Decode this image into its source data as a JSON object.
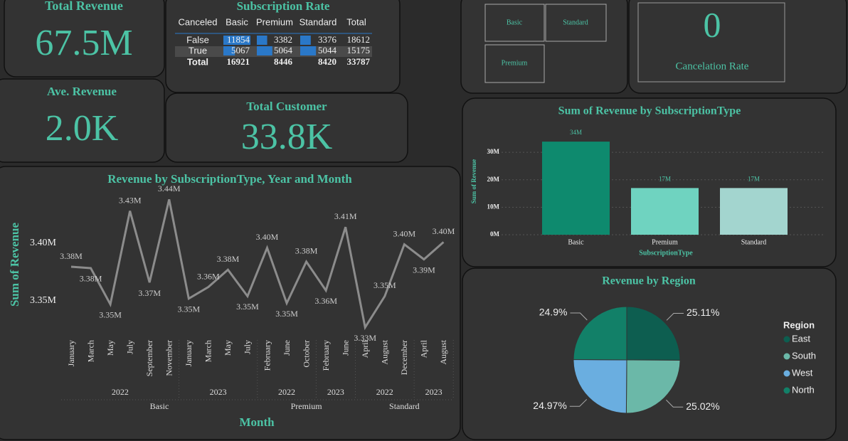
{
  "cards": {
    "total_revenue": {
      "title": "Total Revenue",
      "value": "67.5M"
    },
    "ave_revenue": {
      "title": "Ave. Revenue",
      "value": "2.0K"
    },
    "total_customer": {
      "title": "Total Customer",
      "value": "33.8K"
    },
    "cancelation_rate": {
      "title": "Cancelation Rate",
      "value": "0"
    }
  },
  "table": {
    "title": "Subscription Rate",
    "columns": [
      "Canceled",
      "Basic",
      "Premium",
      "Standard",
      "Total"
    ],
    "rows": [
      [
        "False",
        11854,
        3382,
        3376,
        18612
      ],
      [
        "True",
        5067,
        5064,
        5044,
        15175
      ],
      [
        "Total",
        16921,
        8446,
        8420,
        33787
      ]
    ],
    "bar_color": "#2a78c8"
  },
  "slicer": {
    "items": [
      "Basic",
      "Standard",
      "Premium"
    ]
  },
  "chart_data": [
    {
      "type": "line",
      "title": "Revenue by SubscriptionType, Year and Month",
      "y_label": "Sum of Revenue",
      "x_label": "Month",
      "color": "#8c8c8c",
      "ylim": [
        3320000,
        3445000
      ],
      "yticks": [
        {
          "value": 3350000,
          "label": "3.35M"
        },
        {
          "value": 3400000,
          "label": "3.40M"
        }
      ],
      "groups": [
        {
          "name": "Basic",
          "years": [
            {
              "year": "2022",
              "months": [
                "January",
                "March",
                "May",
                "July",
                "September",
                "November"
              ],
              "values": [
                3379600,
                3378400,
                3347000,
                3428000,
                3366000,
                3438000
              ],
              "value_labels": [
                "3.38M",
                "3.38M",
                "3.35M",
                "3.43M",
                "3.37M",
                "3.44M"
              ]
            },
            {
              "year": "2023",
              "months": [
                "January",
                "March",
                "May",
                "July"
              ],
              "values": [
                3352000,
                3362000,
                3377000,
                3354000
              ],
              "value_labels": [
                "3.35M",
                "3.36M",
                "3.38M",
                "3.35M"
              ]
            }
          ]
        },
        {
          "name": "Premium",
          "years": [
            {
              "year": "2022",
              "months": [
                "February",
                "June",
                "October"
              ],
              "values": [
                3396000,
                3348000,
                3384000
              ],
              "value_labels": [
                "3.40M",
                "3.35M",
                "3.38M"
              ]
            },
            {
              "year": "2023",
              "months": [
                "February",
                "June"
              ],
              "values": [
                3359000,
                3414000
              ],
              "value_labels": [
                "3.36M",
                "3.41M"
              ]
            }
          ]
        },
        {
          "name": "Standard",
          "years": [
            {
              "year": "2022",
              "months": [
                "April",
                "August",
                "December"
              ],
              "values": [
                3327000,
                3354000,
                3399000
              ],
              "value_labels": [
                "3.33M",
                "3.35M",
                "3.40M"
              ]
            },
            {
              "year": "2023",
              "months": [
                "April",
                "August"
              ],
              "values": [
                3386000,
                3401000
              ],
              "value_labels": [
                "3.39M",
                "3.40M"
              ]
            }
          ]
        }
      ]
    },
    {
      "type": "bar",
      "title": "Sum of Revenue by SubscriptionType",
      "y_label": "Sum of Revenue",
      "x_label": "SubscriptionType",
      "categories": [
        "Basic",
        "Premium",
        "Standard"
      ],
      "values": [
        33900000,
        17000000,
        17000000
      ],
      "value_labels": [
        "34M",
        "17M",
        "17M"
      ],
      "colors": [
        "#0e8a6e",
        "#6fd3c0",
        "#a3d5cf"
      ],
      "ylim": [
        0,
        36000000
      ],
      "yticks": [
        {
          "value": 0,
          "label": "0M"
        },
        {
          "value": 10000000,
          "label": "10M"
        },
        {
          "value": 20000000,
          "label": "20M"
        },
        {
          "value": 30000000,
          "label": "30M"
        }
      ],
      "grid": true
    },
    {
      "type": "pie",
      "title": "Revenue by Region",
      "legend_title": "Region",
      "legend": "right",
      "categories": [
        "East",
        "South",
        "West",
        "North"
      ],
      "values": [
        25.11,
        25.02,
        24.97,
        24.9
      ],
      "value_labels": [
        "25.11%",
        "25.02%",
        "24.97%",
        "24.9%"
      ],
      "colors": [
        "#0d5e50",
        "#6bb8a8",
        "#6aaee0",
        "#128068"
      ]
    }
  ]
}
